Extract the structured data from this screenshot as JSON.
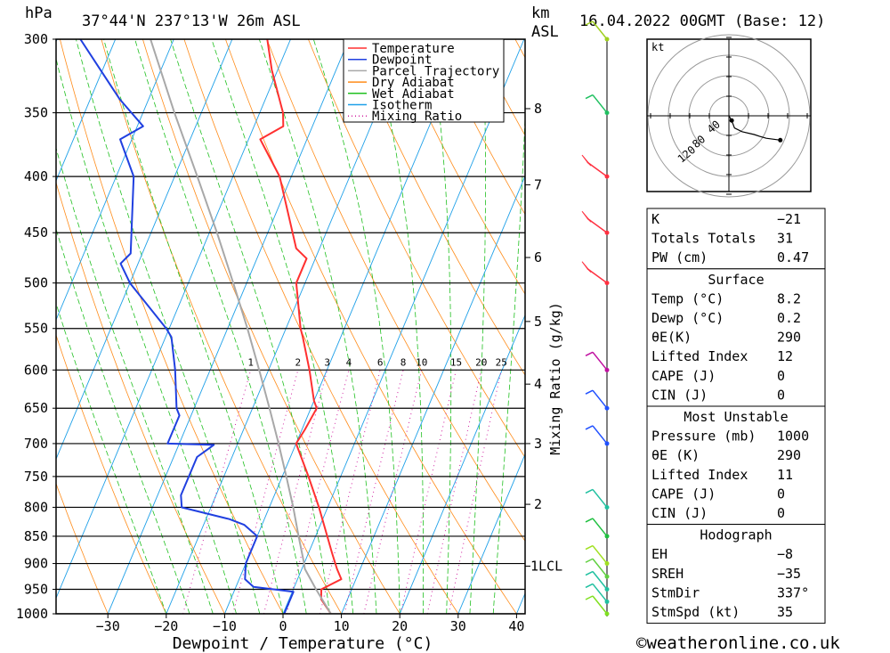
{
  "header": {
    "hpa": "hPa",
    "location": "37°44'N  237°13'W  26m  ASL",
    "km": "km",
    "asl": "ASL",
    "datetime": "16.04.2022  00GMT  (Base: 12)"
  },
  "copyright": "©weatheronline.co.uk",
  "hodograph": {
    "unit": "kt",
    "ring_labels": [
      "40",
      "80",
      "120"
    ],
    "points": [
      [
        0,
        0
      ],
      [
        3,
        -5
      ],
      [
        6,
        -13
      ],
      [
        14,
        -17
      ],
      [
        27,
        -20
      ],
      [
        33,
        -22
      ],
      [
        40,
        -24
      ],
      [
        48,
        -25
      ],
      [
        55,
        -26
      ]
    ]
  },
  "indices_box": {
    "rows": [
      {
        "label": "K",
        "value": "-21"
      },
      {
        "label": "Totals Totals",
        "value": "31"
      },
      {
        "label": "PW (cm)",
        "value": "0.47"
      }
    ]
  },
  "surface_box": {
    "title": "Surface",
    "rows": [
      {
        "label": "Temp (°C)",
        "value": "8.2"
      },
      {
        "label": "Dewp (°C)",
        "value": "0.2"
      },
      {
        "label": "θE(K)",
        "value": "290"
      },
      {
        "label": "Lifted Index",
        "value": "12"
      },
      {
        "label": "CAPE (J)",
        "value": "0"
      },
      {
        "label": "CIN (J)",
        "value": "0"
      }
    ]
  },
  "unstable_box": {
    "title": "Most Unstable",
    "rows": [
      {
        "label": "Pressure (mb)",
        "value": "1000"
      },
      {
        "label": "θE (K)",
        "value": "290"
      },
      {
        "label": "Lifted Index",
        "value": "11"
      },
      {
        "label": "CAPE (J)",
        "value": "0"
      },
      {
        "label": "CIN (J)",
        "value": "0"
      }
    ]
  },
  "hodo_box": {
    "title": "Hodograph",
    "rows": [
      {
        "label": "EH",
        "value": "-8"
      },
      {
        "label": "SREH",
        "value": "-35"
      },
      {
        "label": "StmDir",
        "value": "337°"
      },
      {
        "label": "StmSpd (kt)",
        "value": "35"
      }
    ]
  },
  "chart_data": {
    "type": "line",
    "title": "37°44'N  237°13'W  26m  ASL",
    "xlabel": "Dewpoint / Temperature (°C)",
    "ylabel": "hPa",
    "right_label": "Mixing Ratio (g/kg)",
    "xlim": [
      -40,
      40
    ],
    "ylim": [
      1000,
      300
    ],
    "x_ticks": [
      -30,
      -20,
      -10,
      0,
      10,
      20,
      30,
      40
    ],
    "pressure_levels": [
      300,
      350,
      400,
      450,
      500,
      550,
      600,
      650,
      700,
      750,
      800,
      850,
      900,
      950,
      1000
    ],
    "km_ticks": [
      {
        "p": 347,
        "label": "8"
      },
      {
        "p": 407,
        "label": "7"
      },
      {
        "p": 474,
        "label": "6"
      },
      {
        "p": 542,
        "label": "5"
      },
      {
        "p": 618,
        "label": "4"
      },
      {
        "p": 700,
        "label": "3"
      },
      {
        "p": 795,
        "label": "2"
      },
      {
        "p": 905,
        "label": "1LCL"
      }
    ],
    "mixing_ratio_labels": [
      "1",
      "2",
      "3",
      "4",
      "6",
      "8",
      "10",
      "15",
      "20",
      "25"
    ],
    "legend": {
      "placement": "top-right",
      "entries": [
        {
          "name": "Temperature",
          "color": "#ff3030",
          "dash": "solid"
        },
        {
          "name": "Dewpoint",
          "color": "#2040e0",
          "dash": "solid"
        },
        {
          "name": "Parcel Trajectory",
          "color": "#a8a8a8",
          "dash": "solid"
        },
        {
          "name": "Dry Adiabat",
          "color": "#ff8c1a",
          "dash": "solid"
        },
        {
          "name": "Wet Adiabat",
          "color": "#20c020",
          "dash": "solid"
        },
        {
          "name": "Isotherm",
          "color": "#1ea0e8",
          "dash": "solid"
        },
        {
          "name": "Mixing Ratio",
          "color": "#d020a0",
          "dash": "dotted"
        }
      ]
    },
    "series": [
      {
        "name": "Temperature",
        "color": "#ff3030",
        "points": [
          [
            1000,
            8.2
          ],
          [
            970,
            5.5
          ],
          [
            950,
            4.8
          ],
          [
            930,
            7.5
          ],
          [
            910,
            6.0
          ],
          [
            880,
            4.0
          ],
          [
            850,
            2.0
          ],
          [
            800,
            -1.5
          ],
          [
            750,
            -5.5
          ],
          [
            700,
            -10.0
          ],
          [
            680,
            -9.5
          ],
          [
            650,
            -9.0
          ],
          [
            640,
            -10.0
          ],
          [
            600,
            -13.0
          ],
          [
            560,
            -16.5
          ],
          [
            550,
            -17.5
          ],
          [
            500,
            -21.5
          ],
          [
            475,
            -21.5
          ],
          [
            465,
            -24.0
          ],
          [
            400,
            -32.0
          ],
          [
            370,
            -38.0
          ],
          [
            360,
            -35.0
          ],
          [
            350,
            -36.0
          ],
          [
            320,
            -41.0
          ],
          [
            300,
            -44.0
          ]
        ]
      },
      {
        "name": "Dewpoint",
        "color": "#2040e0",
        "points": [
          [
            1000,
            0.2
          ],
          [
            955,
            0.2
          ],
          [
            945,
            -7.0
          ],
          [
            930,
            -9.0
          ],
          [
            900,
            -10.0
          ],
          [
            850,
            -10.0
          ],
          [
            830,
            -13.0
          ],
          [
            820,
            -16.0
          ],
          [
            800,
            -25.0
          ],
          [
            780,
            -26.0
          ],
          [
            720,
            -26.0
          ],
          [
            702,
            -24.0
          ],
          [
            700,
            -32.0
          ],
          [
            660,
            -32.0
          ],
          [
            650,
            -33.0
          ],
          [
            600,
            -36.0
          ],
          [
            560,
            -39.0
          ],
          [
            550,
            -40.5
          ],
          [
            500,
            -50.0
          ],
          [
            480,
            -53.0
          ],
          [
            470,
            -52.0
          ],
          [
            400,
            -57.0
          ],
          [
            370,
            -62.0
          ],
          [
            360,
            -59.0
          ],
          [
            340,
            -65.0
          ],
          [
            300,
            -76.0
          ]
        ]
      },
      {
        "name": "Parcel Trajectory",
        "color": "#a8a8a8",
        "points": [
          [
            1000,
            8.2
          ],
          [
            950,
            3.9
          ],
          [
            910,
            0.5
          ],
          [
            900,
            0.0
          ],
          [
            850,
            -2.9
          ],
          [
            800,
            -5.9
          ],
          [
            750,
            -9.3
          ],
          [
            700,
            -13.0
          ],
          [
            650,
            -17.1
          ],
          [
            600,
            -21.6
          ],
          [
            550,
            -26.6
          ],
          [
            500,
            -32.3
          ],
          [
            450,
            -38.7
          ],
          [
            400,
            -46.1
          ],
          [
            350,
            -54.6
          ],
          [
            300,
            -64.0
          ]
        ]
      }
    ],
    "wind_barbs": [
      {
        "p": 300,
        "color": "#a0d020"
      },
      {
        "p": 350,
        "color": "#20c060"
      },
      {
        "p": 400,
        "color": "#ff3040"
      },
      {
        "p": 450,
        "color": "#ff3040"
      },
      {
        "p": 500,
        "color": "#ff3040"
      },
      {
        "p": 600,
        "color": "#c010a0"
      },
      {
        "p": 650,
        "color": "#2050ff"
      },
      {
        "p": 700,
        "color": "#2050ff"
      },
      {
        "p": 800,
        "color": "#20c0a0"
      },
      {
        "p": 850,
        "color": "#20c040"
      },
      {
        "p": 900,
        "color": "#a0e020"
      },
      {
        "p": 925,
        "color": "#60d040"
      },
      {
        "p": 950,
        "color": "#20c0a0"
      },
      {
        "p": 975,
        "color": "#20c0a0"
      },
      {
        "p": 1000,
        "color": "#80e020"
      }
    ]
  }
}
